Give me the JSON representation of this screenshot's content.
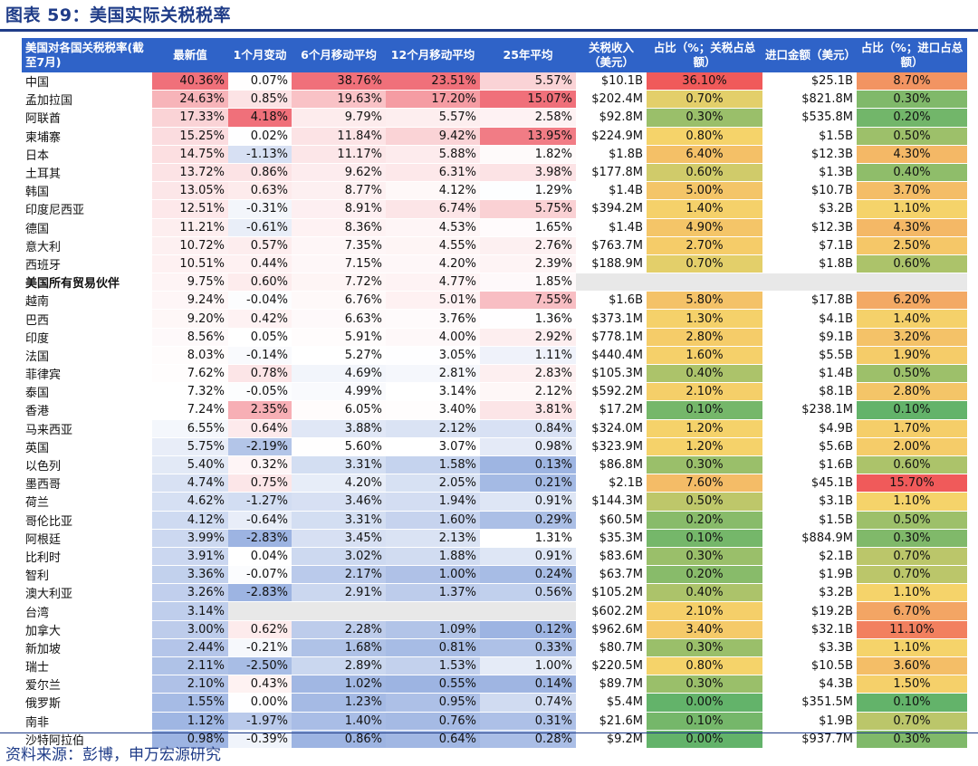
{
  "title": "图表 59：美国实际关税税率",
  "source": "资料来源：彭博，申万宏源研究",
  "chart_data": {
    "type": "table",
    "columns": [
      "美国对各国关税税率(截至7月)",
      "最新值",
      "1个月变动",
      "6个月移动平均",
      "12个月移动平均",
      "25年平均",
      "关税收入（美元）",
      "占比（%；关税占总额）",
      "进口金额（美元）",
      "占比（%；进口占总额）"
    ],
    "rows": [
      [
        "中国",
        "40.36%",
        "0.07%",
        "38.76%",
        "23.51%",
        "5.57%",
        "$10.1B",
        "36.10%",
        "$25.1B",
        "8.70%"
      ],
      [
        "孟加拉国",
        "24.63%",
        "0.85%",
        "19.63%",
        "17.20%",
        "15.07%",
        "$202.4M",
        "0.70%",
        "$821.8M",
        "0.30%"
      ],
      [
        "阿联酋",
        "17.33%",
        "4.18%",
        "9.79%",
        "5.57%",
        "2.58%",
        "$92.8M",
        "0.30%",
        "$535.8M",
        "0.20%"
      ],
      [
        "柬埔寨",
        "15.25%",
        "0.02%",
        "11.84%",
        "9.42%",
        "13.95%",
        "$224.9M",
        "0.80%",
        "$1.5B",
        "0.50%"
      ],
      [
        "日本",
        "14.75%",
        "-1.13%",
        "11.17%",
        "5.88%",
        "1.82%",
        "$1.8B",
        "6.40%",
        "$12.3B",
        "4.30%"
      ],
      [
        "土耳其",
        "13.72%",
        "0.86%",
        "9.62%",
        "6.31%",
        "3.98%",
        "$177.8M",
        "0.60%",
        "$1.3B",
        "0.40%"
      ],
      [
        "韩国",
        "13.05%",
        "0.63%",
        "8.77%",
        "4.12%",
        "1.29%",
        "$1.4B",
        "5.00%",
        "$10.7B",
        "3.70%"
      ],
      [
        "印度尼西亚",
        "12.51%",
        "-0.31%",
        "8.91%",
        "6.74%",
        "5.75%",
        "$394.2M",
        "1.40%",
        "$3.2B",
        "1.10%"
      ],
      [
        "德国",
        "11.21%",
        "-0.61%",
        "8.36%",
        "4.53%",
        "1.65%",
        "$1.4B",
        "4.90%",
        "$12.3B",
        "4.30%"
      ],
      [
        "意大利",
        "10.72%",
        "0.57%",
        "7.35%",
        "4.55%",
        "2.76%",
        "$763.7M",
        "2.70%",
        "$7.1B",
        "2.50%"
      ],
      [
        "西班牙",
        "10.51%",
        "0.44%",
        "7.15%",
        "4.20%",
        "2.39%",
        "$188.9M",
        "0.70%",
        "$1.8B",
        "0.60%"
      ],
      [
        "美国所有贸易伙伴",
        "9.75%",
        "0.60%",
        "7.72%",
        "4.77%",
        "1.85%",
        "",
        "",
        "",
        ""
      ],
      [
        "越南",
        "9.24%",
        "-0.04%",
        "6.76%",
        "5.01%",
        "7.55%",
        "$1.6B",
        "5.80%",
        "$17.8B",
        "6.20%"
      ],
      [
        "巴西",
        "9.20%",
        "0.42%",
        "6.63%",
        "3.76%",
        "1.36%",
        "$373.1M",
        "1.30%",
        "$4.1B",
        "1.40%"
      ],
      [
        "印度",
        "8.56%",
        "0.05%",
        "5.91%",
        "4.00%",
        "2.92%",
        "$778.1M",
        "2.80%",
        "$9.1B",
        "3.20%"
      ],
      [
        "法国",
        "8.03%",
        "-0.14%",
        "5.27%",
        "3.05%",
        "1.11%",
        "$440.4M",
        "1.60%",
        "$5.5B",
        "1.90%"
      ],
      [
        "菲律宾",
        "7.62%",
        "0.78%",
        "4.69%",
        "2.81%",
        "2.83%",
        "$105.3M",
        "0.40%",
        "$1.4B",
        "0.50%"
      ],
      [
        "泰国",
        "7.32%",
        "-0.05%",
        "4.99%",
        "3.14%",
        "2.12%",
        "$592.2M",
        "2.10%",
        "$8.1B",
        "2.80%"
      ],
      [
        "香港",
        "7.24%",
        "2.35%",
        "6.05%",
        "3.40%",
        "3.81%",
        "$17.2M",
        "0.10%",
        "$238.1M",
        "0.10%"
      ],
      [
        "马来西亚",
        "6.55%",
        "0.64%",
        "3.88%",
        "2.12%",
        "0.84%",
        "$324.0M",
        "1.20%",
        "$4.9B",
        "1.70%"
      ],
      [
        "英国",
        "5.75%",
        "-2.19%",
        "5.60%",
        "3.07%",
        "0.98%",
        "$323.9M",
        "1.20%",
        "$5.6B",
        "2.00%"
      ],
      [
        "以色列",
        "5.40%",
        "0.32%",
        "3.31%",
        "1.58%",
        "0.13%",
        "$86.8M",
        "0.30%",
        "$1.6B",
        "0.60%"
      ],
      [
        "墨西哥",
        "4.74%",
        "0.75%",
        "4.20%",
        "2.05%",
        "0.21%",
        "$2.1B",
        "7.60%",
        "$45.1B",
        "15.70%"
      ],
      [
        "荷兰",
        "4.62%",
        "-1.27%",
        "3.46%",
        "1.94%",
        "0.91%",
        "$144.3M",
        "0.50%",
        "$3.1B",
        "1.10%"
      ],
      [
        "哥伦比亚",
        "4.12%",
        "-0.64%",
        "3.31%",
        "1.60%",
        "0.29%",
        "$60.5M",
        "0.20%",
        "$1.5B",
        "0.50%"
      ],
      [
        "阿根廷",
        "3.99%",
        "-2.83%",
        "3.45%",
        "2.13%",
        "1.31%",
        "$35.3M",
        "0.10%",
        "$884.9M",
        "0.30%"
      ],
      [
        "比利时",
        "3.91%",
        "0.04%",
        "3.02%",
        "1.88%",
        "0.91%",
        "$83.6M",
        "0.30%",
        "$2.1B",
        "0.70%"
      ],
      [
        "智利",
        "3.36%",
        "-0.07%",
        "2.17%",
        "1.00%",
        "0.24%",
        "$63.7M",
        "0.20%",
        "$1.9B",
        "0.70%"
      ],
      [
        "澳大利亚",
        "3.26%",
        "-2.83%",
        "2.91%",
        "1.37%",
        "0.56%",
        "$105.2M",
        "0.40%",
        "$3.2B",
        "1.10%"
      ],
      [
        "台湾",
        "3.14%",
        "",
        "",
        "",
        "",
        "$602.2M",
        "2.10%",
        "$19.2B",
        "6.70%"
      ],
      [
        "加拿大",
        "3.00%",
        "0.62%",
        "2.28%",
        "1.09%",
        "0.12%",
        "$962.6M",
        "3.40%",
        "$32.1B",
        "11.10%"
      ],
      [
        "新加坡",
        "2.44%",
        "-0.21%",
        "1.68%",
        "0.81%",
        "0.33%",
        "$80.7M",
        "0.30%",
        "$3.3B",
        "1.10%"
      ],
      [
        "瑞士",
        "2.11%",
        "-2.50%",
        "2.89%",
        "1.53%",
        "1.00%",
        "$220.5M",
        "0.80%",
        "$10.5B",
        "3.60%"
      ],
      [
        "爱尔兰",
        "2.10%",
        "0.43%",
        "1.02%",
        "0.55%",
        "0.14%",
        "$89.7M",
        "0.30%",
        "$4.3B",
        "1.50%"
      ],
      [
        "俄罗斯",
        "1.55%",
        "0.00%",
        "1.23%",
        "0.95%",
        "0.74%",
        "$5.4M",
        "0.00%",
        "$351.5M",
        "0.10%"
      ],
      [
        "南非",
        "1.12%",
        "-1.97%",
        "1.40%",
        "0.76%",
        "0.31%",
        "$21.6M",
        "0.10%",
        "$1.9B",
        "0.70%"
      ],
      [
        "沙特阿拉伯",
        "0.98%",
        "-0.39%",
        "0.86%",
        "0.64%",
        "0.28%",
        "$9.2M",
        "0.00%",
        "$937.7M",
        "0.30%"
      ]
    ],
    "bold_rows": [
      "美国所有贸易伙伴"
    ],
    "colors": {
      "header_bg": "#2f63c8",
      "title": "#1f3c88",
      "rate_high": "#f0707a",
      "rate_low": "#9db4e2",
      "share_high": "#f05a5a",
      "share_mid": "#f5d36a",
      "share_low": "#63b36a",
      "blank_cell": "#e8e8e8"
    }
  }
}
